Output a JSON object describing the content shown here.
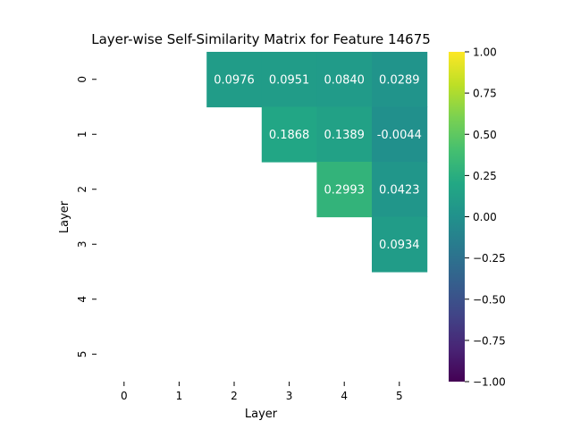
{
  "chart_data": {
    "type": "heatmap",
    "title": "Layer-wise Self-Similarity Matrix for Feature 14675",
    "xlabel": "Layer",
    "ylabel": "Layer",
    "x_categories": [
      "0",
      "1",
      "2",
      "3",
      "4",
      "5"
    ],
    "y_categories": [
      "0",
      "1",
      "2",
      "3",
      "4",
      "5"
    ],
    "mask": "lower triangle and diagonal hidden",
    "values": [
      [
        null,
        null,
        0.0976,
        0.0951,
        0.084,
        0.0289
      ],
      [
        null,
        null,
        null,
        0.1868,
        0.1389,
        -0.0044
      ],
      [
        null,
        null,
        null,
        null,
        0.2993,
        0.0423
      ],
      [
        null,
        null,
        null,
        null,
        null,
        0.0934
      ],
      [
        null,
        null,
        null,
        null,
        null,
        null
      ],
      [
        null,
        null,
        null,
        null,
        null,
        null
      ]
    ],
    "colormap": "viridis",
    "vmin": -1.0,
    "vmax": 1.0,
    "colorbar_ticks": [
      "1.00",
      "0.75",
      "0.50",
      "0.25",
      "0.00",
      "−0.25",
      "−0.50",
      "−0.75",
      "−1.00"
    ],
    "colorbar_tick_values": [
      1.0,
      0.75,
      0.5,
      0.25,
      0.0,
      -0.25,
      -0.5,
      -0.75,
      -1.0
    ],
    "annotation_color": "#ffffff"
  }
}
